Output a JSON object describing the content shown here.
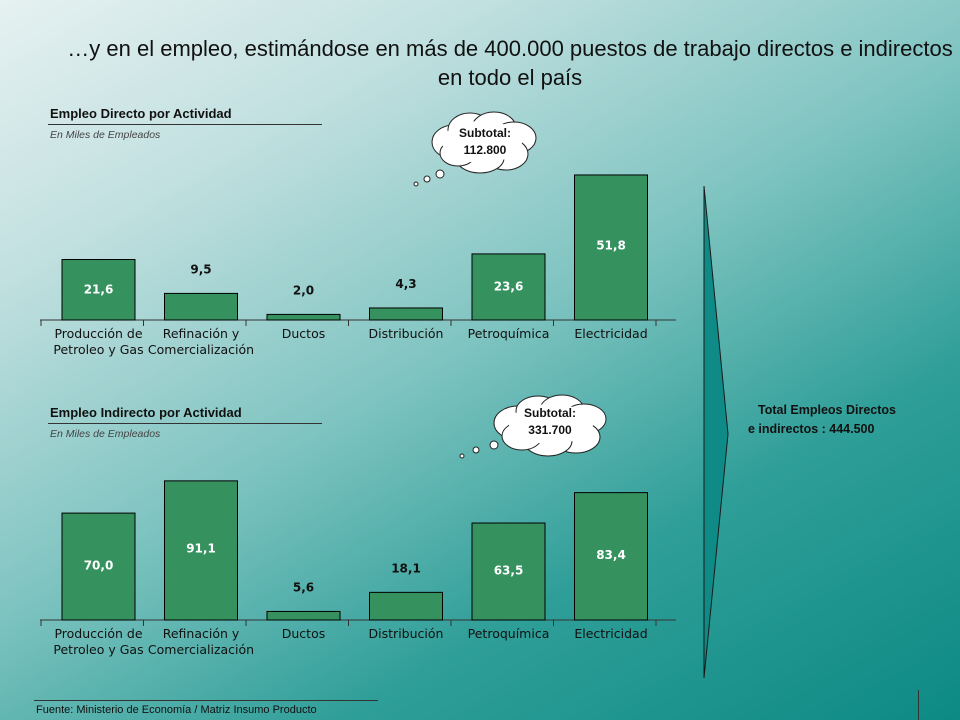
{
  "headline": "…y en el empleo, estimándose en más de 400.000 puestos de trabajo directos e indirectos en todo el país",
  "direct": {
    "title": "Empleo Directo por Actividad",
    "subtitle": "En Miles de Empleados",
    "bubble_label": "Subtotal:",
    "bubble_value": "112.800"
  },
  "indirect": {
    "title": "Empleo Indirecto por Actividad",
    "subtitle": "En Miles de Empleados",
    "bubble_label": "Subtotal:",
    "bubble_value": "331.700"
  },
  "total": {
    "line1": "Total Empleos Directos",
    "line2": "e indirectos : 444.500"
  },
  "footnote": "Fuente: Ministerio de Economía / Matriz Insumo Producto",
  "colors": {
    "bar": "#35925f",
    "bar_stroke": "#000000"
  },
  "chart_data": [
    {
      "type": "bar",
      "title": "Empleo Directo por Actividad",
      "subtitle": "En Miles de Empleados",
      "categories": [
        "Producción de\nPetroleo y Gas",
        "Refinación y\nComercialización",
        "Ductos",
        "Distribución",
        "Petroquímica",
        "Electricidad"
      ],
      "values": [
        21.6,
        9.5,
        2.0,
        4.3,
        23.6,
        51.8
      ],
      "value_labels": [
        "21,6",
        "9,5",
        "2,0",
        "4,3",
        "23,6",
        "51,8"
      ],
      "ylim": [
        0,
        60
      ]
    },
    {
      "type": "bar",
      "title": "Empleo Indirecto por Actividad",
      "subtitle": "En Miles de Empleados",
      "categories": [
        "Producción de\nPetroleo y Gas",
        "Refinación y\nComercialización",
        "Ductos",
        "Distribución",
        "Petroquímica",
        "Electricidad"
      ],
      "values": [
        70.0,
        91.1,
        5.6,
        18.1,
        63.5,
        83.4
      ],
      "value_labels": [
        "70,0",
        "91,1",
        "5,6",
        "18,1",
        "63,5",
        "83,4"
      ],
      "ylim": [
        0,
        110
      ]
    }
  ]
}
